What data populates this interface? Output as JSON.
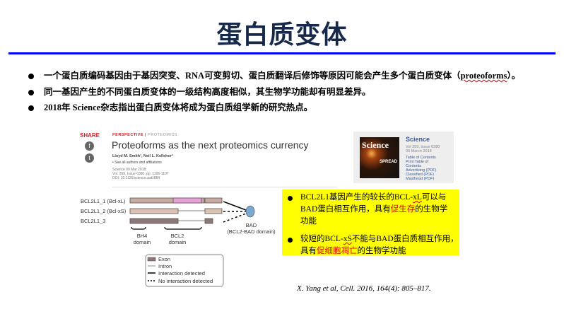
{
  "title": "蛋白质变体",
  "bullets": [
    {
      "text_a": "一个蛋白质编码基因由于基因突变、RNA可变剪切、蛋白质翻译后修饰等原因可能会产生多个蛋白质变体（",
      "text_term": "proteoforms",
      "text_b": "）。"
    },
    {
      "text": "同一基因产生的不同蛋白质变体的一级结构高度相似，其生物学功能却有明显差异。"
    },
    {
      "text": "2018年 Science杂志指出蛋白质变体将成为蛋白质组学新的研究热点。"
    }
  ],
  "article": {
    "share": "SHARE",
    "facebook_icon": "f",
    "twitter_icon": "t",
    "kicker": "PERSPECTIVE",
    "section": "PROTEOMICS",
    "headline": "Proteoforms as the next proteomics currency",
    "authors": "Lloyd M. Smith¹, Neil L. Kelleher²",
    "affiliations": "• See all authors and affiliations",
    "meta": [
      "Science 09 Mar 2018:",
      "Vol. 359, Issue 6380, pp. 1106-1107",
      "DOI: 10.1126/science.aat1884"
    ]
  },
  "journal": {
    "cover_title": "Science",
    "cover_headline": "SPREAD",
    "name": "Science",
    "vol": "Vol 359, Issue 6380",
    "date": "09 March 2018",
    "links": [
      "Table of Contents",
      "Print Table of",
      "Contents",
      "Advertising (PDF)",
      "Classified (PDF)",
      "Masthead (PDF)"
    ]
  },
  "diagram": {
    "isoforms": [
      "BCL2L1_1 (Bcl-xL)",
      "BCL2L1_2 (Bcl-xS)",
      "BCL2L1_3"
    ],
    "domains": [
      {
        "l1": "BH4",
        "l2": "domain"
      },
      {
        "l1": "BCL2",
        "l2": "domain"
      }
    ],
    "partner_l1": "BAD",
    "partner_l2": "(BCL2-BAD domain)",
    "legend": [
      "Exon",
      "Intron",
      "Interaction detected",
      "No interaction detected"
    ],
    "colors": {
      "exon": "#c8aaa0",
      "exon_dark": "#8c7878",
      "highlight": "#e8a0d8",
      "bad": "#7aa8d0"
    }
  },
  "note": {
    "item1_a": "BCL2L1基因产生的较长的BCL-",
    "item1_term": "xL",
    "item1_b": "可以与BAD蛋白相互作用，具有",
    "item1_red": "促生存",
    "item1_c": "的生物学功能",
    "item2_a": "较短的BCL-",
    "item2_term": "xS",
    "item2_b": "不能与BAD蛋白质相互作用，具有",
    "item2_red": "促细胞凋亡",
    "item2_c": "的生物学功能"
  },
  "citation": "X. Yang et al, Cell. 2016, 164(4): 805–817.",
  "colors": {
    "title": "#16294a",
    "rule": "#0000ff",
    "highlight_bg": "#ffff00",
    "emphasis": "#e00000"
  }
}
